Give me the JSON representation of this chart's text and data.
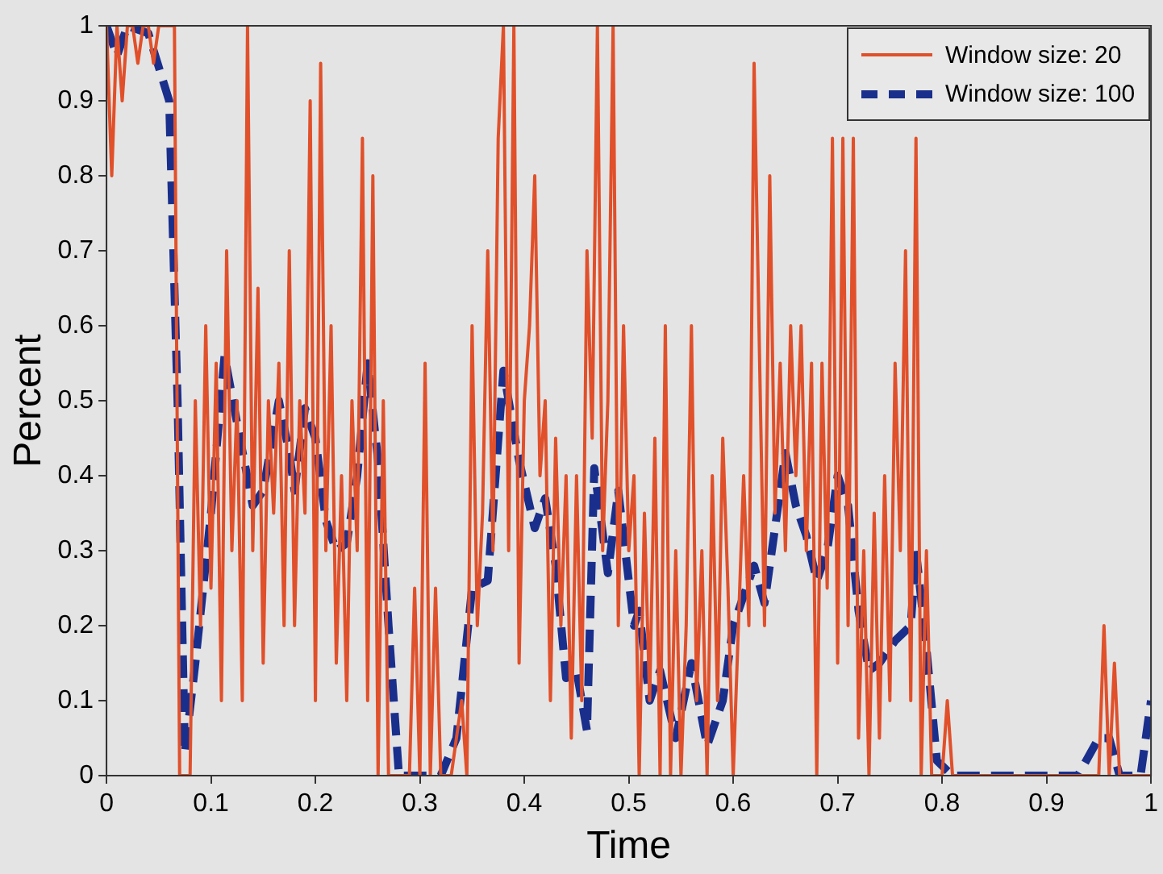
{
  "chart_data": {
    "type": "line",
    "xlabel": "Time",
    "ylabel": "Percent",
    "xlim": [
      0,
      1
    ],
    "ylim": [
      0,
      1
    ],
    "xticks": [
      0,
      0.1,
      0.2,
      0.3,
      0.4,
      0.5,
      0.6,
      0.7,
      0.8,
      0.9,
      1
    ],
    "yticks": [
      0,
      0.1,
      0.2,
      0.3,
      0.4,
      0.5,
      0.6,
      0.7,
      0.8,
      0.9,
      1
    ],
    "grid": false,
    "legend": "top right",
    "marker": "none",
    "series": [
      {
        "name": "Window size: 20",
        "color": "#e0502a",
        "line_style": "solid",
        "x": [
          0,
          0.005,
          0.01,
          0.015,
          0.02,
          0.025,
          0.03,
          0.035,
          0.04,
          0.045,
          0.05,
          0.06,
          0.065,
          0.07,
          0.075,
          0.08,
          0.085,
          0.09,
          0.095,
          0.1,
          0.105,
          0.11,
          0.115,
          0.12,
          0.125,
          0.13,
          0.135,
          0.14,
          0.145,
          0.15,
          0.155,
          0.16,
          0.165,
          0.17,
          0.175,
          0.18,
          0.185,
          0.19,
          0.195,
          0.2,
          0.205,
          0.21,
          0.215,
          0.22,
          0.225,
          0.23,
          0.235,
          0.24,
          0.245,
          0.25,
          0.255,
          0.26,
          0.265,
          0.27,
          0.28,
          0.29,
          0.295,
          0.3,
          0.305,
          0.31,
          0.315,
          0.32,
          0.33,
          0.34,
          0.345,
          0.35,
          0.355,
          0.36,
          0.365,
          0.37,
          0.375,
          0.38,
          0.385,
          0.39,
          0.395,
          0.4,
          0.405,
          0.41,
          0.415,
          0.42,
          0.425,
          0.43,
          0.435,
          0.44,
          0.445,
          0.45,
          0.455,
          0.46,
          0.465,
          0.47,
          0.475,
          0.48,
          0.485,
          0.49,
          0.495,
          0.5,
          0.505,
          0.51,
          0.515,
          0.52,
          0.525,
          0.53,
          0.535,
          0.54,
          0.545,
          0.55,
          0.555,
          0.56,
          0.565,
          0.57,
          0.575,
          0.58,
          0.585,
          0.59,
          0.595,
          0.6,
          0.61,
          0.615,
          0.62,
          0.63,
          0.635,
          0.64,
          0.645,
          0.65,
          0.655,
          0.66,
          0.665,
          0.67,
          0.675,
          0.68,
          0.685,
          0.69,
          0.695,
          0.7,
          0.705,
          0.71,
          0.715,
          0.72,
          0.725,
          0.73,
          0.735,
          0.74,
          0.745,
          0.75,
          0.755,
          0.76,
          0.765,
          0.77,
          0.775,
          0.78,
          0.785,
          0.79,
          0.8,
          0.805,
          0.81,
          0.95,
          0.955,
          0.96,
          0.965,
          0.97,
          1
        ],
        "values": [
          1,
          0.8,
          1,
          0.9,
          1,
          1,
          0.95,
          1,
          1,
          0.95,
          1,
          1,
          1,
          0,
          0,
          0,
          0.5,
          0.2,
          0.6,
          0.25,
          0.55,
          0.1,
          0.7,
          0.3,
          0.5,
          0.1,
          1,
          0.3,
          0.65,
          0.15,
          0.5,
          0.35,
          0.55,
          0.2,
          0.7,
          0.2,
          0.5,
          0.35,
          0.9,
          0.1,
          0.95,
          0.3,
          0.6,
          0.15,
          0.4,
          0.1,
          0.5,
          0.3,
          0.85,
          0.1,
          0.8,
          0,
          0.5,
          0,
          0,
          0,
          0.25,
          0,
          0.55,
          0,
          0.25,
          0,
          0,
          0.1,
          0,
          0.6,
          0.2,
          0.35,
          0.7,
          0.3,
          0.85,
          1,
          0.3,
          1,
          0.15,
          0.5,
          0.6,
          0.8,
          0.4,
          0.5,
          0.1,
          0.45,
          0.2,
          0.4,
          0.05,
          0.4,
          0.1,
          0.7,
          0.45,
          1,
          0.3,
          0.5,
          1,
          0.2,
          0.6,
          0.3,
          0.4,
          0,
          0.35,
          0.1,
          0.45,
          0,
          0.6,
          0,
          0.3,
          0,
          0.2,
          0.6,
          0.1,
          0.3,
          0,
          0.4,
          0.1,
          0.45,
          0.25,
          0,
          0.4,
          0.2,
          0.95,
          0.2,
          0.8,
          0.35,
          0.55,
          0.3,
          0.6,
          0.4,
          0.6,
          0.3,
          0.55,
          0,
          0.55,
          0.25,
          0.85,
          0.15,
          0.85,
          0.2,
          0.85,
          0.05,
          0.3,
          0,
          0.35,
          0.05,
          0.4,
          0.1,
          0.55,
          0.3,
          0.7,
          0.1,
          0.85,
          0,
          0.3,
          0,
          0,
          0.1,
          0,
          0,
          0.2,
          0,
          0.15,
          0,
          0
        ]
      },
      {
        "name": "Window size: 100",
        "color": "#1a2f8c",
        "line_style": "dashed",
        "x": [
          0,
          0.01,
          0.02,
          0.04,
          0.06,
          0.068,
          0.075,
          0.085,
          0.1,
          0.113,
          0.125,
          0.14,
          0.15,
          0.165,
          0.175,
          0.18,
          0.19,
          0.2,
          0.21,
          0.22,
          0.23,
          0.24,
          0.25,
          0.26,
          0.27,
          0.28,
          0.32,
          0.335,
          0.35,
          0.365,
          0.38,
          0.395,
          0.41,
          0.42,
          0.43,
          0.44,
          0.45,
          0.46,
          0.467,
          0.48,
          0.49,
          0.505,
          0.51,
          0.52,
          0.53,
          0.545,
          0.56,
          0.575,
          0.59,
          0.6,
          0.62,
          0.63,
          0.65,
          0.66,
          0.67,
          0.68,
          0.69,
          0.7,
          0.71,
          0.72,
          0.73,
          0.74,
          0.755,
          0.77,
          0.775,
          0.785,
          0.795,
          0.81,
          0.93,
          0.95,
          0.96,
          0.97,
          0.99,
          1
        ],
        "values": [
          1,
          0.96,
          1,
          0.99,
          0.9,
          0.5,
          0.03,
          0.15,
          0.35,
          0.56,
          0.47,
          0.36,
          0.38,
          0.5,
          0.43,
          0.38,
          0.49,
          0.45,
          0.34,
          0.3,
          0.31,
          0.4,
          0.55,
          0.42,
          0.2,
          0,
          0,
          0.05,
          0.25,
          0.26,
          0.54,
          0.42,
          0.33,
          0.37,
          0.28,
          0.13,
          0.14,
          0.06,
          0.41,
          0.27,
          0.38,
          0.2,
          0.22,
          0.1,
          0.14,
          0.05,
          0.15,
          0.04,
          0.1,
          0.2,
          0.28,
          0.23,
          0.43,
          0.36,
          0.32,
          0.26,
          0.3,
          0.4,
          0.36,
          0.22,
          0.14,
          0.15,
          0.18,
          0.2,
          0.3,
          0.17,
          0.02,
          0,
          0,
          0.05,
          0.05,
          0,
          0,
          0.1
        ]
      }
    ]
  }
}
